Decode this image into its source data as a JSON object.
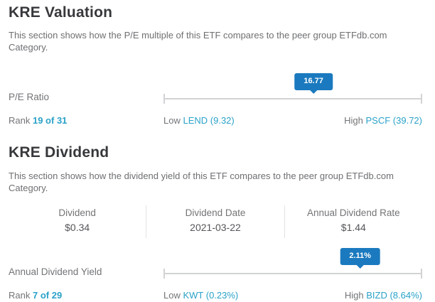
{
  "colors": {
    "accent_blue": "#1b7abf",
    "link_teal": "#2aa2c8"
  },
  "valuation": {
    "title": "KRE Valuation",
    "description": "This section shows how the P/E multiple of this ETF compares to the peer group ETFdb.com Category.",
    "metric": {
      "label": "P/E Ratio",
      "value": "16.77",
      "position_pct": 58,
      "rank_label": "Rank",
      "rank": "19 of 31",
      "low_label": "Low",
      "low": "LEND (9.32)",
      "high_label": "High",
      "high": "PSCF (39.72)"
    }
  },
  "dividend": {
    "title": "KRE Dividend",
    "description": "This section shows how the dividend yield of this ETF compares to the peer group ETFdb.com Category.",
    "table": {
      "columns": [
        {
          "label": "Dividend",
          "value": "$0.34"
        },
        {
          "label": "Dividend Date",
          "value": "2021-03-22"
        },
        {
          "label": "Annual Dividend Rate",
          "value": "$1.44"
        }
      ]
    },
    "metric": {
      "label": "Annual Dividend Yield",
      "value": "2.11%",
      "position_pct": 76,
      "rank_label": "Rank",
      "rank": "7 of 29",
      "low_label": "Low",
      "low": "KWT (0.23%)",
      "high_label": "High",
      "high": "BIZD (8.64%)"
    }
  }
}
